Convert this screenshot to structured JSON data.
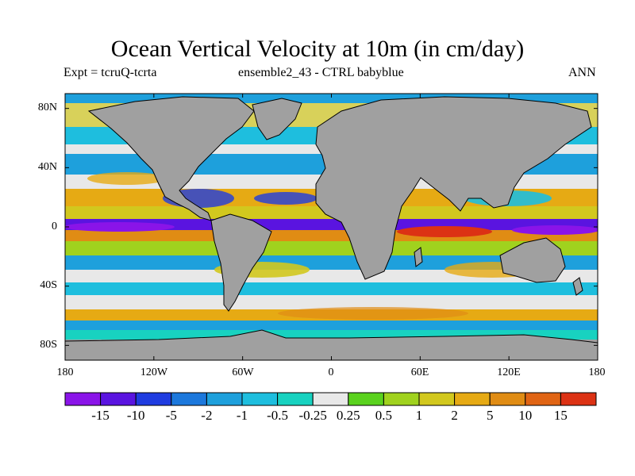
{
  "title": "Ocean Vertical Velocity at 10m (in cm/day)",
  "subtitle_left": "Expt = tcruQ-tcrta",
  "subtitle_mid": "ensemble2_43 - CTRL babyblue",
  "subtitle_right": "ANN",
  "map": {
    "land_color": "#a0a0a0",
    "lat_range": [
      -90,
      90
    ],
    "lon_range": [
      -180,
      180
    ],
    "lat_ticks": [
      "80N",
      "40N",
      "0",
      "40S",
      "80S"
    ],
    "lon_ticks": [
      "180",
      "120W",
      "60W",
      "0",
      "60E",
      "120E",
      "180"
    ]
  },
  "colorbar": {
    "colors": [
      "#8a14e8",
      "#5a14e0",
      "#1f3ce0",
      "#1c78dc",
      "#1ea0dc",
      "#1ebede",
      "#18d2c0",
      "#e8e8e8",
      "#5ad21e",
      "#a0d21e",
      "#d2c81e",
      "#e6aa14",
      "#e08c14",
      "#e06414",
      "#dc3214"
    ],
    "labels": [
      "-15",
      "-10",
      "-5",
      "-2",
      "-1",
      "-0.5",
      "-0.25",
      "0.25",
      "0.5",
      "1",
      "2",
      "5",
      "10",
      "15"
    ]
  }
}
